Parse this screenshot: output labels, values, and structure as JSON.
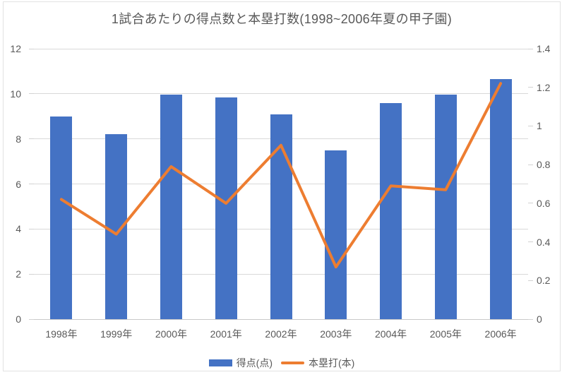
{
  "chart_data": {
    "type": "combo",
    "title": "1試合あたりの得点数と本塁打数(1998~2006年夏の甲子園)",
    "categories": [
      "1998年",
      "1999年",
      "2000年",
      "2001年",
      "2002年",
      "2003年",
      "2004年",
      "2005年",
      "2006年"
    ],
    "series": [
      {
        "name": "得点(点)",
        "type": "bar",
        "axis": "left",
        "color": "#4472C4",
        "values": [
          9.0,
          8.2,
          9.95,
          9.85,
          9.1,
          7.5,
          9.6,
          9.95,
          10.65
        ]
      },
      {
        "name": "本塁打(本)",
        "type": "line",
        "axis": "right",
        "color": "#ED7D31",
        "values": [
          0.62,
          0.44,
          0.79,
          0.6,
          0.9,
          0.27,
          0.69,
          0.67,
          1.22
        ]
      }
    ],
    "axes": {
      "left": {
        "min": 0,
        "max": 12,
        "ticks": [
          0,
          2,
          4,
          6,
          8,
          10,
          12
        ],
        "tick_labels": [
          "0",
          "2",
          "4",
          "6",
          "8",
          "10",
          "12"
        ]
      },
      "right": {
        "min": 0,
        "max": 1.4,
        "ticks": [
          0,
          0.2,
          0.4,
          0.6,
          0.8,
          1.0,
          1.2,
          1.4
        ],
        "tick_labels": [
          "0",
          "0.2",
          "0.4",
          "0.6",
          "0.8",
          "1",
          "1.2",
          "1.4"
        ]
      }
    },
    "grid": true,
    "legend_position": "bottom",
    "colors": {
      "bar": "#4472C4",
      "line": "#ED7D31",
      "gridline": "#D9D9D9",
      "text": "#595959"
    }
  }
}
